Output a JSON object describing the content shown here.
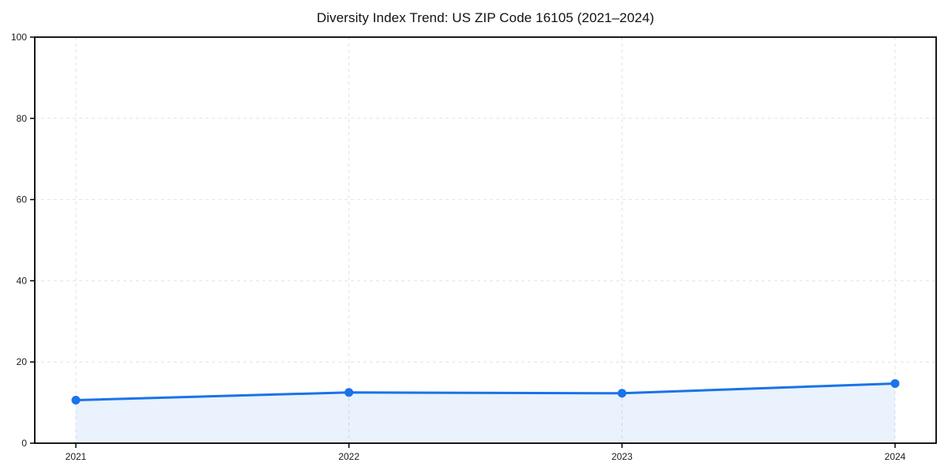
{
  "page": {
    "background": "#ffffff"
  },
  "chart_data": {
    "type": "area",
    "title": "Diversity Index Trend: US ZIP Code 16105 (2021–2024)",
    "categories": [
      "2021",
      "2022",
      "2023",
      "2024"
    ],
    "series": [
      {
        "name": "Diversity Index",
        "values": [
          10.6,
          12.5,
          12.3,
          14.7
        ]
      }
    ],
    "xlabel": "",
    "ylabel": "",
    "ylim": [
      0,
      100
    ],
    "yticks": [
      0,
      20,
      40,
      60,
      80,
      100
    ],
    "grid": "dashed-both",
    "legend": "none",
    "marker": "circle",
    "colors": {
      "line": "#1a73e8",
      "marker": "#1a73e8",
      "fill": "rgba(26,115,232,0.09)",
      "grid": "#e2e2e2",
      "spine": "#000000",
      "tick_label": "#1a1a1a"
    }
  }
}
